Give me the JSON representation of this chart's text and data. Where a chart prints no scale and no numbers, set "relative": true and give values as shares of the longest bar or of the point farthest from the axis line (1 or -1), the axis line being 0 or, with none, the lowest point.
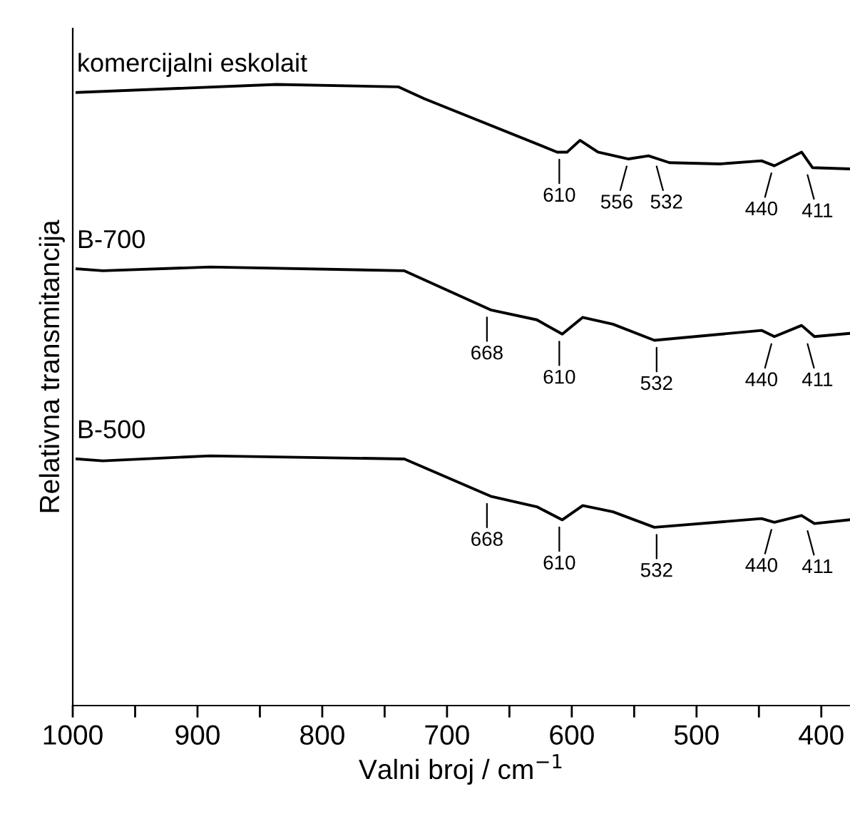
{
  "chart_data": {
    "type": "line",
    "relative": true,
    "xlabel": "Valni broj / cm$^{−1}$",
    "ylabel": "Relativna transmitancija",
    "xlim": [
      1000,
      377
    ],
    "xticks": [
      1000,
      {
        "value": 950,
        "label": null
      },
      900,
      {
        "value": 850,
        "label": null
      },
      800,
      {
        "value": 750,
        "label": null
      },
      700,
      {
        "value": 650,
        "label": null
      },
      600,
      {
        "value": 550,
        "label": null
      },
      500,
      {
        "value": 450,
        "label": null
      },
      400
    ],
    "series": [
      {
        "name": "komercijalni eskolait",
        "color": "#000000",
        "x": [
          996.6,
          836.7,
          738.8,
          718.2,
          611.7,
          603.7,
          593.4,
          579,
          554.5,
          538.5,
          521.7,
          481.1,
          447.9,
          437.6,
          415.8,
          407.1,
          378
        ],
        "values": [
          0.987,
          1,
          0.996,
          0.977,
          0.891,
          0.891,
          0.91,
          0.891,
          0.88,
          0.885,
          0.874,
          0.872,
          0.877,
          0.869,
          0.891,
          0.866,
          0.864
        ]
      },
      {
        "name": "B-700",
        "color": "#000000",
        "x": [
          996.6,
          975.9,
          890,
          734.2,
          665,
          628,
          607.6,
          591.2,
          567,
          533.8,
          447.9,
          437.6,
          415.8,
          405.5,
          378
        ],
        "values": [
          0.703,
          0.7,
          0.706,
          0.7,
          0.637,
          0.621,
          0.598,
          0.625,
          0.614,
          0.588,
          0.604,
          0.594,
          0.612,
          0.594,
          0.599
        ]
      },
      {
        "name": "B-500",
        "color": "#000000",
        "x": [
          996.6,
          975.9,
          890,
          734.2,
          665,
          628,
          607.6,
          591.2,
          567,
          533.8,
          447.9,
          437.6,
          415.8,
          405.5,
          378
        ],
        "values": [
          0.397,
          0.394,
          0.402,
          0.397,
          0.337,
          0.32,
          0.299,
          0.322,
          0.312,
          0.287,
          0.301,
          0.295,
          0.306,
          0.293,
          0.299
        ]
      }
    ],
    "annotations": [
      {
        "text": "610",
        "x": 610,
        "y": 0.891
      },
      {
        "text": "556",
        "x": 556,
        "y": 0.88
      },
      {
        "text": "532",
        "x": 532,
        "y": 0.88
      },
      {
        "text": "440",
        "x": 440,
        "y": 0.869
      },
      {
        "text": "411",
        "x": 411,
        "y": 0.866
      },
      {
        "text": "668",
        "x": 668,
        "y": 0.637
      },
      {
        "text": "610",
        "x": 610,
        "y": 0.598
      },
      {
        "text": "532",
        "x": 532,
        "y": 0.588
      },
      {
        "text": "440",
        "x": 440,
        "y": 0.594
      },
      {
        "text": "411",
        "x": 411,
        "y": 0.594
      },
      {
        "text": "668",
        "x": 668,
        "y": 0.337
      },
      {
        "text": "610",
        "x": 610,
        "y": 0.299
      },
      {
        "text": "532",
        "x": 532,
        "y": 0.287
      },
      {
        "text": "440",
        "x": 440,
        "y": 0.295
      },
      {
        "text": "411",
        "x": 411,
        "y": 0.293
      }
    ]
  }
}
